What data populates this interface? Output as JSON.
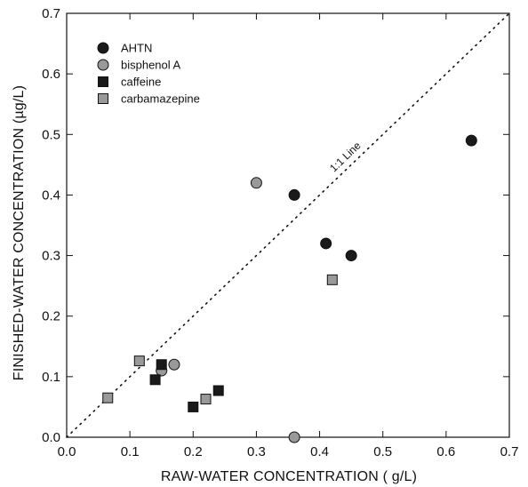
{
  "chart_data": {
    "type": "scatter",
    "title": "",
    "xlabel": "RAW-WATER CONCENTRATION ( g/L)",
    "ylabel": "FINISHED-WATER CONCENTRATION (µg/L)",
    "xlim": [
      0,
      0.7
    ],
    "ylim": [
      0,
      0.7
    ],
    "x_ticks": [
      "0.0",
      "0.1",
      "0.2",
      "0.3",
      "0.4",
      "0.5",
      "0.6",
      "0.7"
    ],
    "y_ticks": [
      "0.0",
      "0.1",
      "0.2",
      "0.3",
      "0.4",
      "0.5",
      "0.6",
      "0.7"
    ],
    "grid": false,
    "legend_position": "top-left",
    "reference_line": {
      "label": "1:1 Line",
      "slope": 1,
      "intercept": 0,
      "style": "dotted"
    },
    "series": [
      {
        "name": "AHTN",
        "marker": "circle",
        "color": "#1a1a1a",
        "points": [
          {
            "x": 0.36,
            "y": 0.4
          },
          {
            "x": 0.41,
            "y": 0.32
          },
          {
            "x": 0.45,
            "y": 0.3
          },
          {
            "x": 0.64,
            "y": 0.49
          }
        ]
      },
      {
        "name": "bisphenol A",
        "marker": "circle",
        "color": "#999999",
        "points": [
          {
            "x": 0.3,
            "y": 0.42
          },
          {
            "x": 0.15,
            "y": 0.11
          },
          {
            "x": 0.17,
            "y": 0.12
          },
          {
            "x": 0.36,
            "y": 0.0
          }
        ]
      },
      {
        "name": "caffeine",
        "marker": "square",
        "color": "#1a1a1a",
        "points": [
          {
            "x": 0.15,
            "y": 0.12
          },
          {
            "x": 0.14,
            "y": 0.095
          },
          {
            "x": 0.2,
            "y": 0.05
          },
          {
            "x": 0.24,
            "y": 0.077
          }
        ]
      },
      {
        "name": "carbamazepine",
        "marker": "square",
        "color": "#999999",
        "points": [
          {
            "x": 0.065,
            "y": 0.065
          },
          {
            "x": 0.115,
            "y": 0.126
          },
          {
            "x": 0.22,
            "y": 0.063
          },
          {
            "x": 0.42,
            "y": 0.26
          }
        ]
      }
    ]
  }
}
